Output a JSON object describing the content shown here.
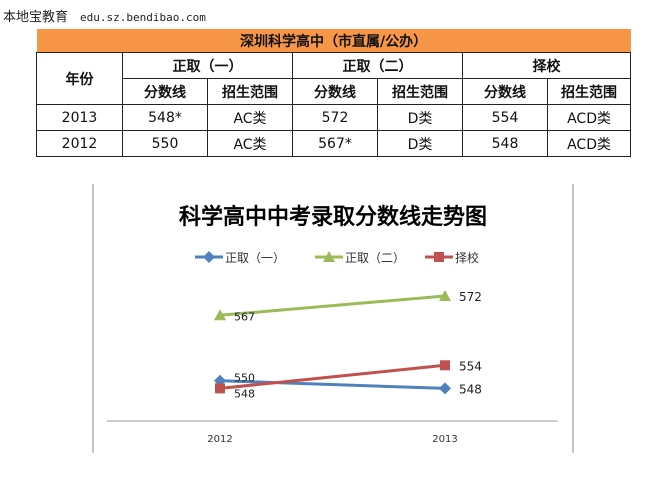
{
  "site": {
    "name": "本地宝教育",
    "url": "edu.sz.bendibao.com"
  },
  "table": {
    "title": "深圳科学高中（市直属/公办）",
    "year_header": "年份",
    "groups": [
      "正取（一）",
      "正取（二）",
      "择校"
    ],
    "subheaders": [
      "分数线",
      "招生范围",
      "分数线",
      "招生范围",
      "分数线",
      "招生范围"
    ],
    "rows": [
      {
        "year": "2013",
        "cells": [
          "548*",
          "AC类",
          "572",
          "D类",
          "554",
          "ACD类"
        ]
      },
      {
        "year": "2012",
        "cells": [
          "550",
          "AC类",
          "567*",
          "D类",
          "548",
          "ACD类"
        ]
      }
    ]
  },
  "chart_data": {
    "type": "line",
    "title": "科学高中中考录取分数线走势图",
    "categories": [
      "2012",
      "2013"
    ],
    "legend": "top",
    "grid": false,
    "series": [
      {
        "name": "正取（一）",
        "values": [
          550,
          548
        ],
        "color": "#4f81bd",
        "marker": "diamond"
      },
      {
        "name": "正取（二）",
        "values": [
          567,
          572
        ],
        "color": "#9bbb59",
        "marker": "triangle"
      },
      {
        "name": "择校",
        "values": [
          548,
          554
        ],
        "color": "#c0504d",
        "marker": "square"
      }
    ]
  }
}
